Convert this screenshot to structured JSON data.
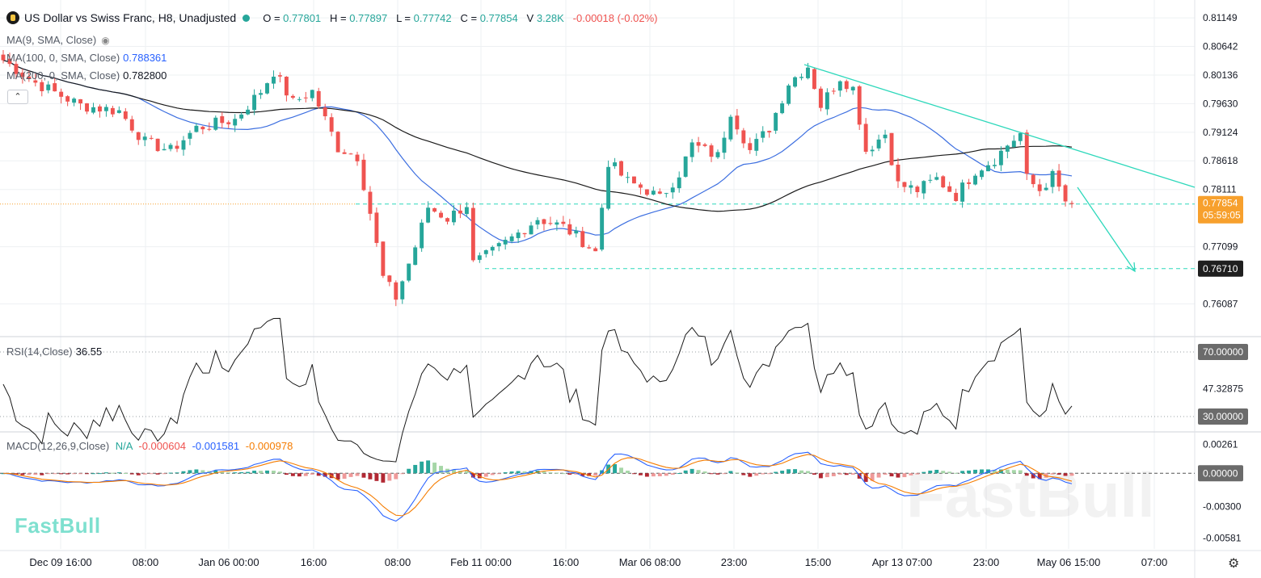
{
  "header": {
    "symbol_title": "US Dollar vs Swiss Franc, H8, Unadjusted",
    "open_label": "O",
    "open": "0.77801",
    "high_label": "H",
    "high": "0.77897",
    "low_label": "L",
    "low": "0.77742",
    "close_label": "C",
    "close": "0.77854",
    "volume_label": "V",
    "volume": "3.28K",
    "change": "-0.00018 (-0.02%)"
  },
  "indicators": {
    "ma9": {
      "label": "MA(9, SMA, Close)"
    },
    "ma100": {
      "label": "MA(100, 0, SMA, Close)",
      "value": "0.788361",
      "color": "#3d6fe0"
    },
    "ma200": {
      "label": "MA(200, 0, SMA, Close)",
      "value": "0.782800",
      "color": "#1a1a1a"
    },
    "rsi": {
      "label": "RSI(14,Close)",
      "value": "36.55"
    },
    "macd": {
      "label": "MACD(12,26,9,Close)",
      "na": "N/A",
      "hist": "-0.000604",
      "macd": "-0.001581",
      "signal": "-0.000978"
    }
  },
  "brand": "FastBull",
  "watermark": "FastBull",
  "colors": {
    "up": "#26a69a",
    "down": "#ef5350",
    "trendline": "#2ed8bb",
    "price_tag": "#f7a02d",
    "axis_tag": "#6b6b6b"
  },
  "chart_data": [
    {
      "type": "candlestick",
      "panel": "price",
      "ylim": [
        0.7555,
        0.8135
      ],
      "y_ticks": [
        "0.81149",
        "0.80642",
        "0.80136",
        "0.79630",
        "0.79124",
        "0.78618",
        "0.78111",
        "0.77099",
        "0.76087"
      ],
      "x_ticks": [
        "Dec 09 16:00",
        "08:00",
        "Jan 06 00:00",
        "16:00",
        "08:00",
        "Feb 11 00:00",
        "16:00",
        "Mar 06 08:00",
        "23:00",
        "15:00",
        "Apr 13 07:00",
        "23:00",
        "May 06 15:00",
        "07:00"
      ],
      "last_price": {
        "value": 0.77854,
        "label": "0.77854",
        "countdown": "05:59:05"
      },
      "support_level": {
        "value": 0.7671,
        "label": "0.76710"
      },
      "trend_anchors": [
        {
          "t": 0,
          "c": 0.804
        },
        {
          "t": 5,
          "c": 0.8
        },
        {
          "t": 12,
          "c": 0.796
        },
        {
          "t": 18,
          "c": 0.795
        },
        {
          "t": 22,
          "c": 0.7895
        },
        {
          "t": 26,
          "c": 0.788
        },
        {
          "t": 30,
          "c": 0.792
        },
        {
          "t": 36,
          "c": 0.7935
        },
        {
          "t": 40,
          "c": 0.7985
        },
        {
          "t": 42,
          "c": 0.802
        },
        {
          "t": 45,
          "c": 0.7965
        },
        {
          "t": 48,
          "c": 0.7985
        },
        {
          "t": 52,
          "c": 0.7885
        },
        {
          "t": 55,
          "c": 0.787
        },
        {
          "t": 57,
          "c": 0.777
        },
        {
          "t": 59,
          "c": 0.7655
        },
        {
          "t": 61,
          "c": 0.762
        },
        {
          "t": 64,
          "c": 0.771
        },
        {
          "t": 66,
          "c": 0.778
        },
        {
          "t": 69,
          "c": 0.776
        },
        {
          "t": 72,
          "c": 0.7785
        },
        {
          "t": 73,
          "c": 0.768
        },
        {
          "t": 76,
          "c": 0.77
        },
        {
          "t": 79,
          "c": 0.7725
        },
        {
          "t": 83,
          "c": 0.776
        },
        {
          "t": 87,
          "c": 0.7745
        },
        {
          "t": 90,
          "c": 0.772
        },
        {
          "t": 92,
          "c": 0.77
        },
        {
          "t": 94,
          "c": 0.786
        },
        {
          "t": 97,
          "c": 0.7825
        },
        {
          "t": 100,
          "c": 0.781
        },
        {
          "t": 102,
          "c": 0.7795
        },
        {
          "t": 105,
          "c": 0.784
        },
        {
          "t": 107,
          "c": 0.789
        },
        {
          "t": 111,
          "c": 0.787
        },
        {
          "t": 113,
          "c": 0.795
        },
        {
          "t": 116,
          "c": 0.788
        },
        {
          "t": 119,
          "c": 0.792
        },
        {
          "t": 122,
          "c": 0.8
        },
        {
          "t": 125,
          "c": 0.803
        },
        {
          "t": 127,
          "c": 0.796
        },
        {
          "t": 130,
          "c": 0.801
        },
        {
          "t": 132,
          "c": 0.799
        },
        {
          "t": 134,
          "c": 0.788
        },
        {
          "t": 137,
          "c": 0.791
        },
        {
          "t": 139,
          "c": 0.782
        },
        {
          "t": 142,
          "c": 0.781
        },
        {
          "t": 145,
          "c": 0.783
        },
        {
          "t": 148,
          "c": 0.78
        },
        {
          "t": 151,
          "c": 0.7845
        },
        {
          "t": 154,
          "c": 0.7865
        },
        {
          "t": 156,
          "c": 0.789
        },
        {
          "t": 158,
          "c": 0.791
        },
        {
          "t": 159,
          "c": 0.783
        },
        {
          "t": 161,
          "c": 0.781
        },
        {
          "t": 163,
          "c": 0.7835
        },
        {
          "t": 165,
          "c": 0.779
        },
        {
          "t": 166,
          "c": 0.77854
        }
      ]
    },
    {
      "type": "line",
      "panel": "rsi",
      "ylim": [
        22,
        78
      ],
      "y_ticks": [
        "70.00000",
        "47.32875",
        "30.00000"
      ],
      "levels": [
        70,
        30
      ],
      "value": 36.55
    },
    {
      "type": "line+bar",
      "panel": "macd",
      "ylim": [
        -0.0068,
        0.0035
      ],
      "y_ticks": [
        "0.00261",
        "0.00000",
        "-0.00300",
        "-0.00581"
      ],
      "series": [
        {
          "name": "macd",
          "last": -0.001581
        },
        {
          "name": "signal",
          "last": -0.000978
        },
        {
          "name": "hist",
          "last": -0.000604
        }
      ]
    }
  ]
}
